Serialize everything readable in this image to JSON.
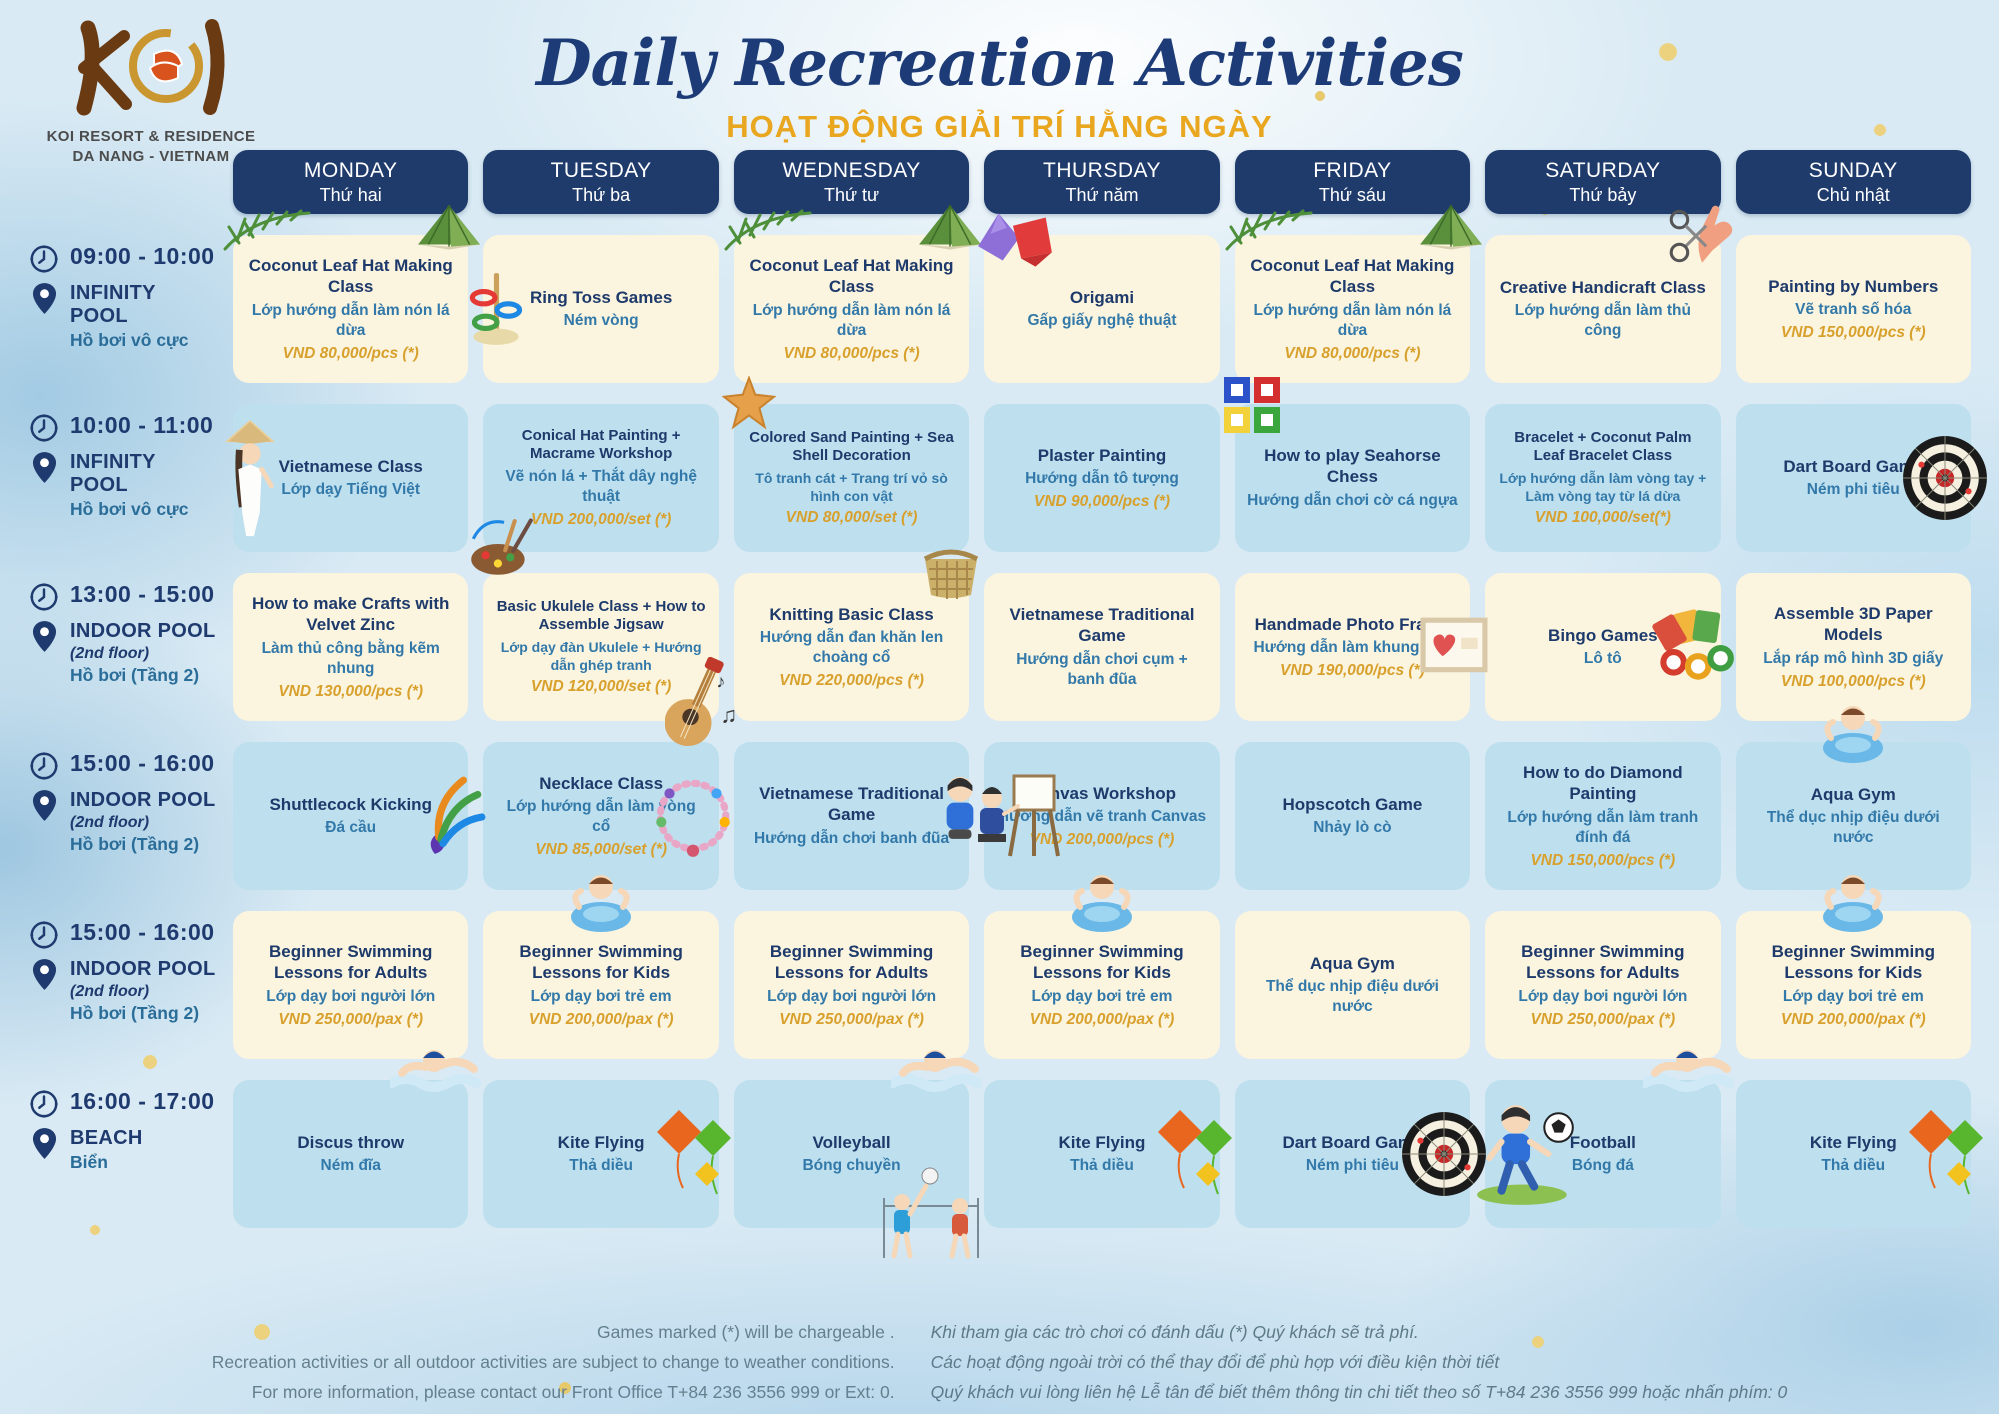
{
  "colors": {
    "navy": "#1f3b6c",
    "orange_subtitle": "#e9a61f",
    "card_cream": "#fbf4df",
    "card_blue": "#bedfee",
    "price_gold": "#d8a02c",
    "vi_blue": "#3279a9"
  },
  "header": {
    "logo_text": "KOI",
    "logo_line1": "KOI RESORT & RESIDENCE",
    "logo_line2": "DA NANG - VIETNAM",
    "title": "Daily Recreation Activities",
    "subtitle": "HOẠT ĐỘNG GIẢI TRÍ HẰNG NGÀY"
  },
  "days": [
    {
      "en": "MONDAY",
      "vi": "Thứ hai"
    },
    {
      "en": "TUESDAY",
      "vi": "Thứ ba"
    },
    {
      "en": "WEDNESDAY",
      "vi": "Thứ tư"
    },
    {
      "en": "THURSDAY",
      "vi": "Thứ năm"
    },
    {
      "en": "FRIDAY",
      "vi": "Thứ sáu"
    },
    {
      "en": "SATURDAY",
      "vi": "Thứ bảy"
    },
    {
      "en": "SUNDAY",
      "vi": "Chủ nhật"
    }
  ],
  "time_slots": [
    {
      "time": "09:00 - 10:00",
      "location": "INFINITY POOL",
      "note": "",
      "sub": "Hồ bơi vô cực"
    },
    {
      "time": "10:00 - 11:00",
      "location": "INFINITY POOL",
      "note": "",
      "sub": "Hồ bơi vô cực"
    },
    {
      "time": "13:00 - 15:00",
      "location": "INDOOR POOL",
      "note": "(2nd floor)",
      "sub": "Hồ bơi  (Tầng 2)"
    },
    {
      "time": "15:00 - 16:00",
      "location": "INDOOR POOL",
      "note": "(2nd floor)",
      "sub": "Hồ bơi  (Tầng 2)"
    },
    {
      "time": "15:00 - 16:00",
      "location": "INDOOR POOL",
      "note": "(2nd floor)",
      "sub": "Hồ bơi  (Tầng 2)"
    },
    {
      "time": "16:00 - 17:00",
      "location": "BEACH",
      "note": "",
      "sub": "Biển"
    }
  ],
  "rows": [
    {
      "style": "cream",
      "cells": [
        {
          "title": "Coconut Leaf Hat Making Class",
          "vi": "Lớp hướng dẫn làm nón lá dừa",
          "price": "VND 80,000/pcs (*)",
          "icons": [
            "palm-leaf",
            "conical-hat"
          ]
        },
        {
          "title": "Ring Toss Games",
          "vi": "Ném vòng",
          "price": "",
          "icons": [
            "ring-toss"
          ]
        },
        {
          "title": "Coconut Leaf Hat Making Class",
          "vi": "Lớp hướng dẫn làm nón lá dừa",
          "price": "VND 80,000/pcs (*)",
          "icons": [
            "palm-leaf",
            "conical-hat"
          ]
        },
        {
          "title": "Origami",
          "vi": "Gấp giấy nghệ thuật",
          "price": "",
          "icons": [
            "origami"
          ]
        },
        {
          "title": "Coconut Leaf Hat Making Class",
          "vi": "Lớp hướng dẫn làm nón lá dừa",
          "price": "VND 80,000/pcs (*)",
          "icons": [
            "palm-leaf",
            "conical-hat"
          ]
        },
        {
          "title": "Creative Handicraft Class",
          "vi": "Lớp hướng dẫn làm thủ công",
          "price": "",
          "icons": [
            "craft-hand"
          ]
        },
        {
          "title": "Painting by Numbers",
          "vi": "Vẽ tranh số hóa",
          "price": "VND 150,000/pcs (*)",
          "icons": []
        }
      ]
    },
    {
      "style": "blue",
      "cells": [
        {
          "title": "Vietnamese Class",
          "vi": "Lớp dạy Tiếng Việt",
          "price": "",
          "icons": [
            "ao-dai-girl"
          ]
        },
        {
          "title": "Conical Hat Painting + Macrame Workshop",
          "vi": "Vẽ nón lá + Thắt dây nghệ thuật",
          "price": "VND 200,000/set (*)",
          "icons": [
            "palette"
          ]
        },
        {
          "title": "Colored Sand Painting + Sea Shell Decoration",
          "vi": "Tô tranh cát + Trang trí vỏ sò hình con vật",
          "price": "VND 80,000/set (*)",
          "icons": [
            "starfish"
          ]
        },
        {
          "title": "Plaster Painting",
          "vi": "Hướng dẫn tô tượng",
          "price": "VND 90,000/pcs (*)",
          "icons": []
        },
        {
          "title": "How to play Seahorse Chess",
          "vi": "Hướng dẫn chơi cờ cá ngựa",
          "price": "",
          "icons": [
            "ludo"
          ]
        },
        {
          "title": "Bracelet + Coconut Palm Leaf Bracelet Class",
          "vi": "Lớp hướng dẫn làm vòng tay + Làm vòng tay từ lá dừa",
          "price": "VND 100,000/set(*)",
          "icons": []
        },
        {
          "title": "Dart Board Game",
          "vi": "Ném phi tiêu",
          "price": "",
          "icons": [
            "dartboard"
          ]
        }
      ]
    },
    {
      "style": "cream",
      "cells": [
        {
          "title": "How to make Crafts with Velvet Zinc",
          "vi": "Làm thủ công bằng kẽm nhung",
          "price": "VND 130,000/pcs (*)",
          "icons": []
        },
        {
          "title": "Basic Ukulele Class + How to Assemble Jigsaw",
          "vi": "Lớp dạy đàn Ukulele + Hướng dẫn ghép tranh",
          "price": "VND 120,000/set (*)",
          "icons": [
            "ukulele"
          ]
        },
        {
          "title": "Knitting Basic Class",
          "vi": "Hướng dẫn đan khăn len choàng cổ",
          "price": "VND 220,000/pcs (*)",
          "icons": [
            "basket"
          ]
        },
        {
          "title": "Vietnamese Traditional Game",
          "vi": "Hướng dẫn chơi cụm + banh đũa",
          "price": "",
          "icons": []
        },
        {
          "title": "Handmade Photo Frame",
          "vi": "Hướng dẫn làm khung ảnh",
          "price": "VND 190,000/pcs (*)",
          "icons": [
            "photo-frame"
          ]
        },
        {
          "title": "Bingo Games",
          "vi": "Lô tô",
          "price": "",
          "icons": [
            "bingo"
          ]
        },
        {
          "title": "Assemble 3D Paper Models",
          "vi": "Lắp ráp mô hình 3D giấy",
          "price": "VND 100,000/pcs (*)",
          "icons": []
        }
      ]
    },
    {
      "style": "blue",
      "cells": [
        {
          "title": "Shuttlecock Kicking",
          "vi": "Đá cầu",
          "price": "",
          "icons": [
            "shuttlecock"
          ]
        },
        {
          "title": "Necklace Class",
          "vi": "Lớp hướng dẫn làm vòng cổ",
          "price": "VND 85,000/set (*)",
          "icons": [
            "necklace"
          ]
        },
        {
          "title": "Vietnamese Traditional Game",
          "vi": "Hướng dẫn chơi banh đũa",
          "price": "",
          "icons": [
            "boy"
          ]
        },
        {
          "title": "Canvas Workshop",
          "vi": "Hướng dẫn vẽ tranh Canvas",
          "price": "VND 200,000/pcs (*)",
          "icons": [
            "painter"
          ]
        },
        {
          "title": "Hopscotch Game",
          "vi": "Nhảy lò cò",
          "price": "",
          "icons": []
        },
        {
          "title": "How to do Diamond Painting",
          "vi": "Lớp hướng dẫn làm tranh đính đá",
          "price": "VND 150,000/pcs (*)",
          "icons": []
        },
        {
          "title": "Aqua Gym",
          "vi": "Thể dục nhịp điệu dưới nước",
          "price": "",
          "icons": [
            "floatie"
          ]
        }
      ]
    },
    {
      "style": "cream",
      "cells": [
        {
          "title": "Beginner Swimming Lessons for Adults",
          "vi": "Lớp dạy bơi người lớn",
          "price": "VND 250,000/pax (*)",
          "icons": [
            "swimmer"
          ]
        },
        {
          "title": "Beginner Swimming Lessons for Kids",
          "vi": "Lớp dạy bơi trẻ em",
          "price": "VND 200,000/pax (*)",
          "icons": [
            "floatie"
          ]
        },
        {
          "title": "Beginner Swimming Lessons for Adults",
          "vi": "Lớp dạy bơi người lớn",
          "price": "VND 250,000/pax (*)",
          "icons": [
            "swimmer"
          ]
        },
        {
          "title": "Beginner Swimming Lessons for Kids",
          "vi": "Lớp dạy bơi trẻ em",
          "price": "VND 200,000/pax (*)",
          "icons": [
            "floatie"
          ]
        },
        {
          "title": "Aqua Gym",
          "vi": "Thể dục nhịp điệu dưới nước",
          "price": "",
          "icons": []
        },
        {
          "title": "Beginner Swimming Lessons for Adults",
          "vi": "Lớp dạy bơi người lớn",
          "price": "VND 250,000/pax (*)",
          "icons": [
            "swimmer"
          ]
        },
        {
          "title": "Beginner Swimming Lessons for Kids",
          "vi": "Lớp dạy bơi trẻ em",
          "price": "VND 200,000/pax (*)",
          "icons": [
            "floatie"
          ]
        }
      ]
    },
    {
      "style": "blue",
      "cells": [
        {
          "title": "Discus throw",
          "vi": "Ném đĩa",
          "price": "",
          "icons": []
        },
        {
          "title": "Kite Flying",
          "vi": "Thả diều",
          "price": "",
          "icons": [
            "kites"
          ]
        },
        {
          "title": "Volleyball",
          "vi": "Bóng chuyền",
          "price": "",
          "icons": [
            "volleyball"
          ]
        },
        {
          "title": "Kite Flying",
          "vi": "Thả diều",
          "price": "",
          "icons": [
            "kites"
          ]
        },
        {
          "title": "Dart Board Game",
          "vi": "Ném phi tiêu",
          "price": "",
          "icons": [
            "dartboard"
          ]
        },
        {
          "title": "Football",
          "vi": "Bóng đá",
          "price": "",
          "icons": [
            "football"
          ]
        },
        {
          "title": "Kite Flying",
          "vi": "Thả diều",
          "price": "",
          "icons": [
            "kites"
          ]
        }
      ]
    }
  ],
  "footer": {
    "en": [
      "Games marked (*) will be chargeable .",
      "Recreation activities or all outdoor activities are subject to change to weather conditions.",
      "For more information, please contact our Front Office T+84 236 3556 999 or Ext: 0."
    ],
    "vi": [
      "Khi tham gia các trò chơi có đánh dấu (*) Quý khách sẽ trả phí.",
      "Các hoạt động ngoài trời có thể thay đổi để phù hợp với điều kiện thời tiết",
      "Quý khách vui lòng liên hệ Lễ tân  để biết thêm thông tin chi tiết theo số T+84 236 3556 999 hoặc nhấn phím: 0"
    ]
  }
}
